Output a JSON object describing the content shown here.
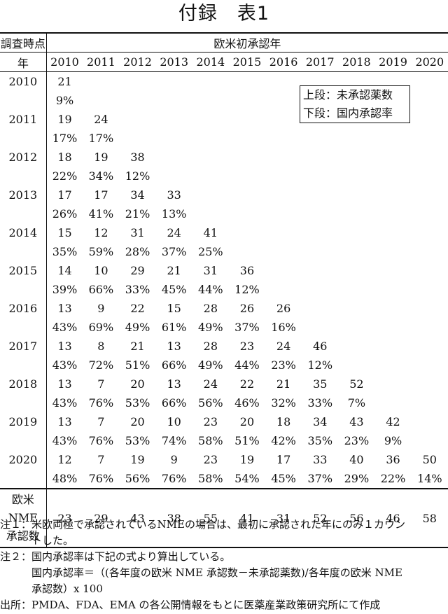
{
  "title": "付録　表1",
  "header": {
    "survey_label": "調査時点",
    "year_label": "年",
    "approval_label": "欧米初承認年",
    "years": [
      "2010",
      "2011",
      "2012",
      "2013",
      "2014",
      "2015",
      "2016",
      "2017",
      "2018",
      "2019",
      "2020"
    ]
  },
  "legend": {
    "line1": "上段：未承認薬数",
    "line2": "下段：国内承認率"
  },
  "rows": [
    {
      "year": "2010",
      "counts": [
        "21"
      ],
      "rates": [
        "9%"
      ]
    },
    {
      "year": "2011",
      "counts": [
        "19",
        "24"
      ],
      "rates": [
        "17%",
        "17%"
      ]
    },
    {
      "year": "2012",
      "counts": [
        "18",
        "19",
        "38"
      ],
      "rates": [
        "22%",
        "34%",
        "12%"
      ]
    },
    {
      "year": "2013",
      "counts": [
        "17",
        "17",
        "34",
        "33"
      ],
      "rates": [
        "26%",
        "41%",
        "21%",
        "13%"
      ]
    },
    {
      "year": "2014",
      "counts": [
        "15",
        "12",
        "31",
        "24",
        "41"
      ],
      "rates": [
        "35%",
        "59%",
        "28%",
        "37%",
        "25%"
      ]
    },
    {
      "year": "2015",
      "counts": [
        "14",
        "10",
        "29",
        "21",
        "31",
        "36"
      ],
      "rates": [
        "39%",
        "66%",
        "33%",
        "45%",
        "44%",
        "12%"
      ]
    },
    {
      "year": "2016",
      "counts": [
        "13",
        "9",
        "22",
        "15",
        "28",
        "26",
        "26"
      ],
      "rates": [
        "43%",
        "69%",
        "49%",
        "61%",
        "49%",
        "37%",
        "16%"
      ]
    },
    {
      "year": "2017",
      "counts": [
        "13",
        "8",
        "21",
        "13",
        "28",
        "23",
        "24",
        "46"
      ],
      "rates": [
        "43%",
        "72%",
        "51%",
        "66%",
        "49%",
        "44%",
        "23%",
        "12%"
      ]
    },
    {
      "year": "2018",
      "counts": [
        "13",
        "7",
        "20",
        "13",
        "24",
        "22",
        "21",
        "35",
        "52"
      ],
      "rates": [
        "43%",
        "76%",
        "53%",
        "66%",
        "56%",
        "46%",
        "32%",
        "33%",
        "7%"
      ]
    },
    {
      "year": "2019",
      "counts": [
        "13",
        "7",
        "20",
        "10",
        "23",
        "20",
        "18",
        "34",
        "43",
        "42"
      ],
      "rates": [
        "43%",
        "76%",
        "53%",
        "74%",
        "58%",
        "51%",
        "42%",
        "35%",
        "23%",
        "9%"
      ]
    },
    {
      "year": "2020",
      "counts": [
        "12",
        "7",
        "19",
        "9",
        "23",
        "19",
        "17",
        "33",
        "40",
        "36",
        "50"
      ],
      "rates": [
        "48%",
        "76%",
        "56%",
        "76%",
        "58%",
        "54%",
        "45%",
        "37%",
        "29%",
        "22%",
        "14%"
      ]
    }
  ],
  "nme": {
    "label_line1": "欧米",
    "label_line2": "NME",
    "label_line3": "承認数",
    "values": [
      "23",
      "29",
      "43",
      "38",
      "55",
      "41",
      "31",
      "52",
      "56",
      "46",
      "58"
    ]
  },
  "notes": {
    "note1_a": "注１：米欧両極で承認されているNMEの場合は、最初に承認された年にのみ１カウン",
    "note1_b": "　　　トした。",
    "note2_a": "注２：国内承認率は下記の式より算出している。",
    "note2_b": "　　　国内承認率＝（(各年度の欧米 NME 承認数－未承認薬数)/各年度の欧米 NME",
    "note2_c": "　　　承認数）x 100",
    "source": "出所：PMDA、FDA、EMA の各公開情報をもとに医薬産業政策研究所にて作成"
  }
}
